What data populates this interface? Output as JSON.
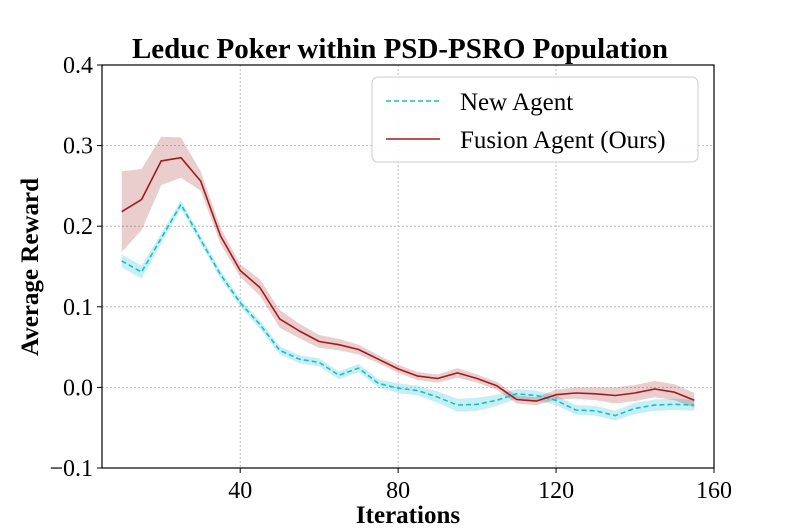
{
  "chart_data": {
    "type": "line",
    "title": "Leduc Poker within PSD-PSRO Population",
    "xlabel": "Iterations",
    "ylabel": "Average Reward",
    "xlim": [
      5,
      160
    ],
    "ylim": [
      -0.1,
      0.4
    ],
    "xticks": [
      40,
      80,
      120,
      160
    ],
    "xtick_labels": [
      "40",
      "80",
      "120",
      "160"
    ],
    "yticks": [
      -0.1,
      0.0,
      0.1,
      0.2,
      0.3,
      0.4
    ],
    "ytick_labels": [
      "−0.1",
      "0.0",
      "0.1",
      "0.2",
      "0.3",
      "0.4"
    ],
    "grid": true,
    "legend_position": "top-right",
    "x": [
      10,
      15,
      20,
      25,
      30,
      35,
      40,
      45,
      50,
      55,
      60,
      65,
      70,
      75,
      80,
      85,
      90,
      95,
      100,
      105,
      110,
      115,
      120,
      125,
      130,
      135,
      140,
      145,
      150,
      155
    ],
    "series": [
      {
        "name": "New Agent",
        "style": "dashed",
        "color": "#17becf",
        "values": [
          0.157,
          0.143,
          0.185,
          0.227,
          0.183,
          0.14,
          0.105,
          0.078,
          0.046,
          0.035,
          0.031,
          0.015,
          0.024,
          0.005,
          -0.001,
          -0.004,
          -0.012,
          -0.022,
          -0.021,
          -0.016,
          -0.008,
          -0.01,
          -0.016,
          -0.028,
          -0.029,
          -0.035,
          -0.026,
          -0.022,
          -0.021,
          -0.022
        ],
        "band_half_width": [
          0.008,
          0.008,
          0.006,
          0.005,
          0.005,
          0.005,
          0.005,
          0.005,
          0.005,
          0.005,
          0.005,
          0.005,
          0.005,
          0.005,
          0.006,
          0.006,
          0.007,
          0.008,
          0.008,
          0.007,
          0.006,
          0.006,
          0.006,
          0.006,
          0.006,
          0.006,
          0.007,
          0.007,
          0.007,
          0.007
        ]
      },
      {
        "name": "Fusion Agent (Ours)",
        "style": "solid",
        "color": "#a01c1c",
        "values": [
          0.218,
          0.233,
          0.281,
          0.285,
          0.256,
          0.188,
          0.145,
          0.124,
          0.085,
          0.07,
          0.057,
          0.053,
          0.047,
          0.035,
          0.023,
          0.014,
          0.011,
          0.018,
          0.011,
          0.002,
          -0.015,
          -0.017,
          -0.009,
          -0.007,
          -0.008,
          -0.01,
          -0.007,
          -0.002,
          -0.006,
          -0.016
        ],
        "band_half_width": [
          0.05,
          0.038,
          0.03,
          0.025,
          0.012,
          0.01,
          0.008,
          0.01,
          0.011,
          0.009,
          0.008,
          0.007,
          0.006,
          0.005,
          0.005,
          0.005,
          0.005,
          0.006,
          0.005,
          0.005,
          0.005,
          0.005,
          0.006,
          0.007,
          0.008,
          0.01,
          0.01,
          0.01,
          0.01,
          0.009
        ]
      }
    ]
  }
}
